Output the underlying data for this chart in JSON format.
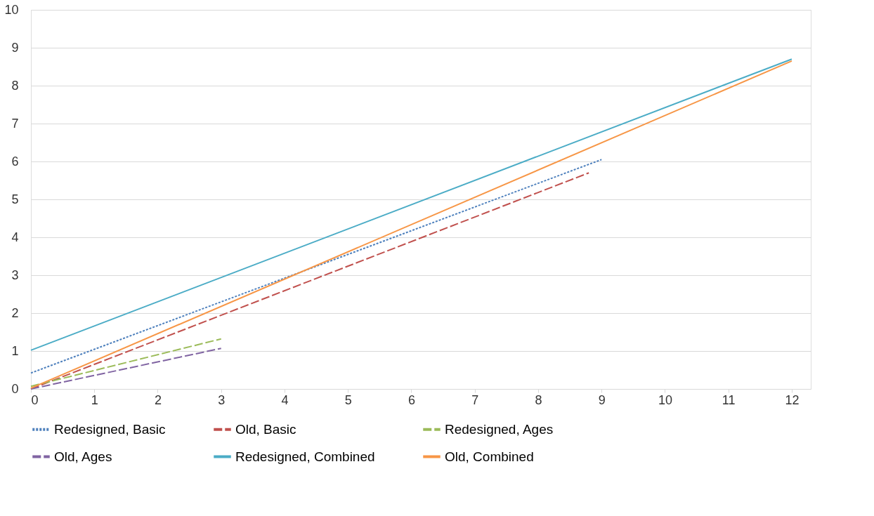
{
  "chart_data": {
    "type": "line",
    "xlim": [
      0,
      12.3
    ],
    "ylim": [
      0,
      10
    ],
    "xticks": [
      0,
      1,
      2,
      3,
      4,
      5,
      6,
      7,
      8,
      9,
      10,
      11,
      12
    ],
    "yticks": [
      0,
      1,
      2,
      3,
      4,
      5,
      6,
      7,
      8,
      9,
      10
    ],
    "grid": "y",
    "legend": "bottom",
    "marker": "none",
    "series": [
      {
        "name": "Redesigned, Basic",
        "color": "#4f81bd",
        "line_style": "dotted",
        "x": [
          0,
          9
        ],
        "values": [
          0.42,
          6.05
        ]
      },
      {
        "name": "Old, Basic",
        "color": "#c0504d",
        "line_style": "dashed",
        "x": [
          0,
          8.8
        ],
        "values": [
          0.0,
          5.7
        ]
      },
      {
        "name": "Redesigned, Ages",
        "color": "#9bbb59",
        "line_style": "dashed",
        "x": [
          0,
          3
        ],
        "values": [
          0.07,
          1.32
        ]
      },
      {
        "name": "Old, Ages",
        "color": "#8064a2",
        "line_style": "dashed",
        "x": [
          0,
          3
        ],
        "values": [
          0.0,
          1.07
        ]
      },
      {
        "name": "Redesigned, Combined",
        "color": "#4bacc6",
        "line_style": "solid",
        "x": [
          0,
          12
        ],
        "values": [
          1.02,
          8.7
        ]
      },
      {
        "name": "Old, Combined",
        "color": "#f79646",
        "line_style": "solid",
        "x": [
          0,
          12
        ],
        "values": [
          0.02,
          8.65
        ]
      }
    ]
  }
}
